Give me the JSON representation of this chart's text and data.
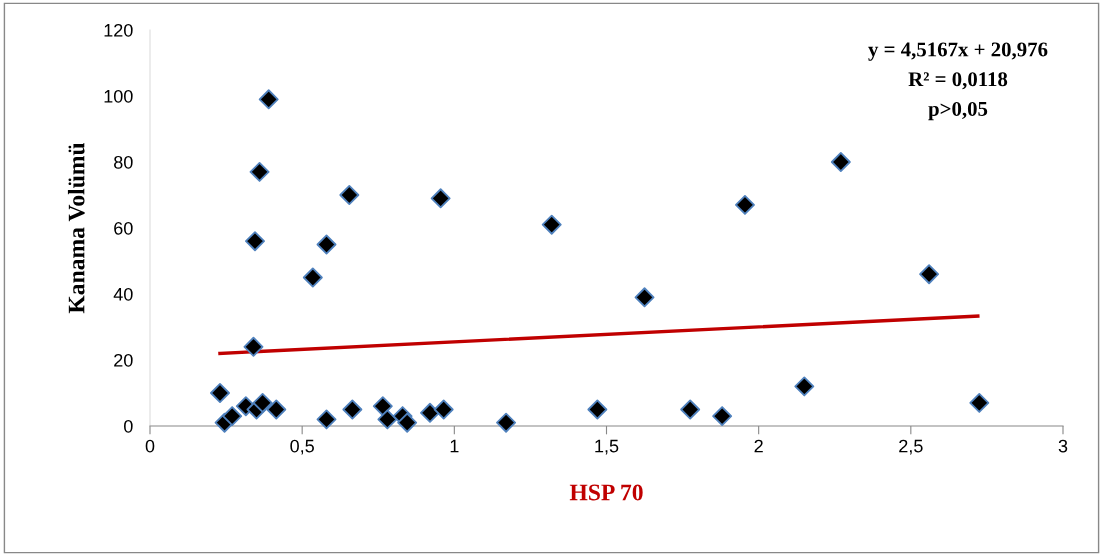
{
  "chart_data": {
    "type": "scatter",
    "xlabel": "HSP 70",
    "ylabel": "Kanama Volümü",
    "xlim": [
      0,
      3
    ],
    "ylim": [
      0,
      120
    ],
    "xticks": [
      0,
      {
        "value": 0.5,
        "label": "0,5"
      },
      1,
      {
        "value": 1.5,
        "label": "1,5"
      },
      2,
      {
        "value": 2.5,
        "label": "2,5"
      },
      3
    ],
    "yticks": [
      0,
      20,
      40,
      60,
      80,
      100,
      120
    ],
    "grid": false,
    "legend": false,
    "marker": "diamond",
    "series": [
      {
        "color": "#000000",
        "x": [
          0.39,
          0.36,
          0.345,
          0.655,
          0.955,
          0.58,
          0.535,
          0.34,
          0.23,
          0.245,
          0.27,
          0.315,
          0.35,
          0.37,
          0.415,
          0.58,
          0.665,
          0.765,
          0.78,
          0.83,
          0.845,
          0.92,
          0.965,
          1.17,
          1.47,
          1.625,
          1.775,
          1.88,
          2.15,
          2.725,
          1.32,
          1.955,
          2.27,
          2.56
        ],
        "values": [
          99,
          77,
          56,
          70,
          69,
          55,
          45,
          24,
          10,
          1,
          3,
          6,
          5,
          7,
          5,
          2,
          5,
          6,
          2,
          3,
          1,
          4,
          5,
          1,
          5,
          39,
          5,
          3,
          12,
          7,
          61,
          67,
          80,
          46
        ]
      },
      {
        "type": "line",
        "color": "#c00000",
        "marker": "none",
        "line_style": "solid",
        "x": [
          0.23,
          2.72
        ],
        "values": [
          22.0,
          33.3
        ]
      }
    ],
    "annotations": [
      "y = 4,5167x + 20,976",
      "R² = 0,0118",
      "p>0,05"
    ]
  }
}
